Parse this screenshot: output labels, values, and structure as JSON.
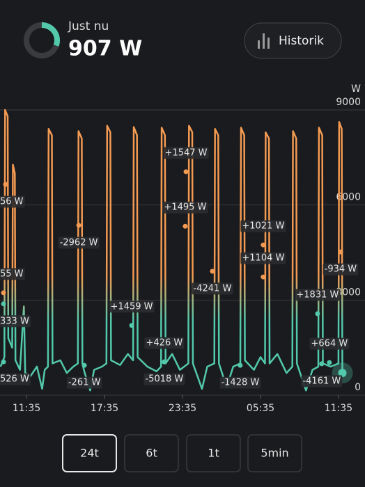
{
  "header": {
    "label": "Just nu",
    "value": "907 W",
    "button": "Historik"
  },
  "chart_data": {
    "type": "line",
    "ylabel": "W",
    "x": [
      -2.0,
      -1.7,
      -1.65,
      -1.45,
      -1.4,
      -1.1,
      -1.05,
      -0.9,
      -0.85,
      -0.5,
      -0.2,
      -0.1,
      0.3,
      0.8,
      1.2,
      1.4,
      1.65,
      1.7,
      1.95,
      2.0,
      2.6,
      3.1,
      3.6,
      3.95,
      4.0,
      4.25,
      4.3,
      4.45,
      4.9,
      5.2,
      5.8,
      6.15,
      6.2,
      6.45,
      6.5,
      7.2,
      7.8,
      8.2,
      8.25,
      8.5,
      8.55,
      9.3,
      10.0,
      10.35,
      10.4,
      10.65,
      10.7,
      11.2,
      11.8,
      12.45,
      12.5,
      12.75,
      12.8,
      13.5,
      13.9,
      14.45,
      14.5,
      14.75,
      14.8,
      15.4,
      15.9,
      16.45,
      16.5,
      16.75,
      16.8,
      17.5,
      18.0,
      18.35,
      18.4,
      18.65,
      18.7,
      19.3,
      20.0,
      20.45,
      20.5,
      20.75,
      20.8,
      21.5,
      22.0,
      22.45,
      22.5,
      22.75,
      22.8,
      23.4,
      24.0,
      24.05,
      24.25,
      24.3
    ],
    "series": [
      {
        "color": "#f39a52",
        "low_color": "#52c9ab",
        "values": [
          900,
          1200,
          9000,
          8800,
          1800,
          1500,
          7270,
          7000,
          1100,
          800,
          2800,
          700,
          600,
          900,
          200,
          800,
          900,
          8400,
          8200,
          1000,
          1100,
          700,
          900,
          1000,
          8330,
          8100,
          1000,
          740,
          150,
          800,
          900,
          1000,
          8500,
          8300,
          1100,
          950,
          1300,
          1100,
          8460,
          8200,
          1200,
          900,
          750,
          900,
          8440,
          8200,
          1000,
          1300,
          800,
          1000,
          8500,
          8300,
          1000,
          200,
          900,
          1000,
          8400,
          8200,
          1000,
          250,
          900,
          1000,
          8440,
          8200,
          1100,
          800,
          1200,
          1000,
          8290,
          8100,
          1000,
          1300,
          700,
          900,
          8330,
          8100,
          1000,
          150,
          800,
          900,
          8440,
          8200,
          1000,
          900,
          1000,
          8620,
          8400,
          700
        ]
      }
    ],
    "xlim": [
      -2.04,
      26.04
    ],
    "xticks": [
      {
        "value": 0,
        "label": "11:35"
      },
      {
        "value": 6,
        "label": "17:35"
      },
      {
        "value": 12,
        "label": "23:35"
      },
      {
        "value": 18,
        "label": "05:35"
      },
      {
        "value": 24,
        "label": "11:35"
      }
    ],
    "ylim": [
      0,
      9000
    ],
    "yticks": [
      0,
      3000,
      6000,
      9000
    ],
    "grid": true,
    "annotations": [
      {
        "text": "56 W",
        "x": -1.61,
        "y": 6650,
        "position": "below"
      },
      {
        "text": "-2962 W",
        "x": 4.02,
        "y": 5360,
        "position": "below"
      },
      {
        "text": "+1547 W",
        "x": 12.27,
        "y": 7050,
        "position": "above"
      },
      {
        "text": "+1495 W",
        "x": 12.21,
        "y": 5330,
        "position": "above"
      },
      {
        "text": "+1021 W",
        "x": 18.21,
        "y": 4740,
        "position": "above"
      },
      {
        "text": "+1104 W",
        "x": 18.21,
        "y": 3730,
        "position": "above"
      },
      {
        "text": "-934 W",
        "x": 24.16,
        "y": 4520,
        "position": "below"
      },
      {
        "text": "55 W",
        "x": -1.77,
        "y": 3230,
        "position": "above"
      },
      {
        "text": "-4241 W",
        "x": 14.3,
        "y": 3910,
        "position": "below"
      },
      {
        "text": "+1831 W",
        "x": 22.39,
        "y": 2570,
        "position": "above"
      },
      {
        "text": "+1459 W",
        "x": 8.09,
        "y": 2200,
        "position": "above"
      },
      {
        "text": "333 W",
        "x": -1.77,
        "y": 2880,
        "position": "below"
      },
      {
        "text": "+426 W",
        "x": 10.6,
        "y": 1050,
        "position": "above"
      },
      {
        "text": "-5018 W",
        "x": 10.6,
        "y": 1050,
        "position": "below"
      },
      {
        "text": "+664 W",
        "x": 23.3,
        "y": 1030,
        "position": "above"
      },
      {
        "text": "-261 W",
        "x": 4.45,
        "y": 940,
        "position": "below"
      },
      {
        "text": "-1428 W",
        "x": 16.44,
        "y": 940,
        "position": "below"
      },
      {
        "text": "-4161 W",
        "x": 22.71,
        "y": 990,
        "position": "below"
      },
      {
        "text": "526 W",
        "x": -1.77,
        "y": 1050,
        "position": "below"
      }
    ]
  },
  "range_buttons": [
    "24t",
    "6t",
    "1t",
    "5min"
  ]
}
